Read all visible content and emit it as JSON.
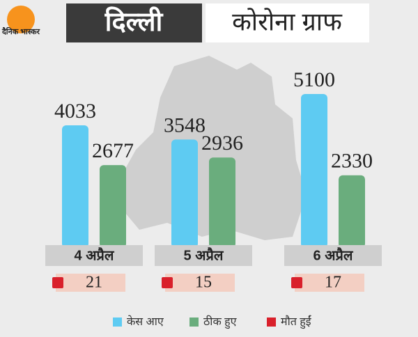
{
  "chart_data": {
    "type": "bar",
    "logo": "दैनिक भास्कर",
    "title": "दिल्ली",
    "subtitle": "कोरोना ग्राफ",
    "categories": [
      "4 अप्रैल",
      "5 अप्रैल",
      "6 अप्रैल"
    ],
    "series": [
      {
        "name": "केस आए",
        "color": "#5ecbf2",
        "values": [
          4033,
          3548,
          5100
        ]
      },
      {
        "name": "ठीक हुए",
        "color": "#6aad7d",
        "values": [
          2677,
          2936,
          2330
        ]
      },
      {
        "name": "मौत हुईं",
        "color": "#d9202b",
        "values": [
          21,
          15,
          17
        ]
      }
    ]
  }
}
